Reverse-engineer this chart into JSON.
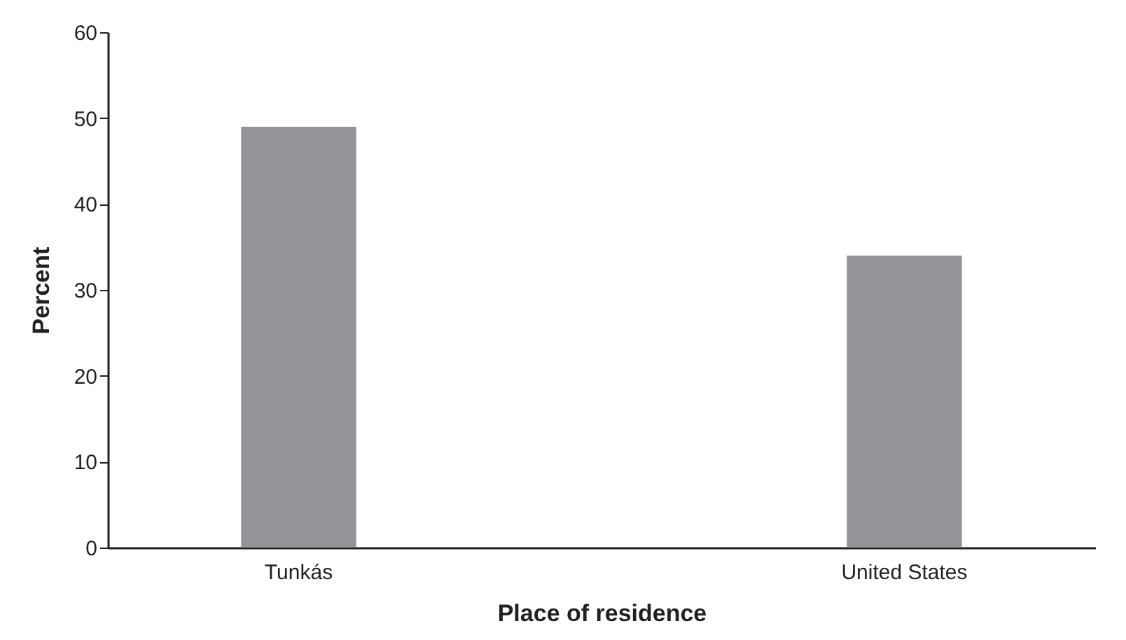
{
  "chart_data": {
    "type": "bar",
    "xlabel": "Place of residence",
    "ylabel": "Percent",
    "categories": [
      "Tunkás",
      "United States"
    ],
    "values": [
      49,
      34
    ],
    "color": "#939598",
    "ylim": [
      0,
      60
    ],
    "yticks": [
      0,
      10,
      20,
      30,
      40,
      50,
      60
    ],
    "grid": false
  }
}
